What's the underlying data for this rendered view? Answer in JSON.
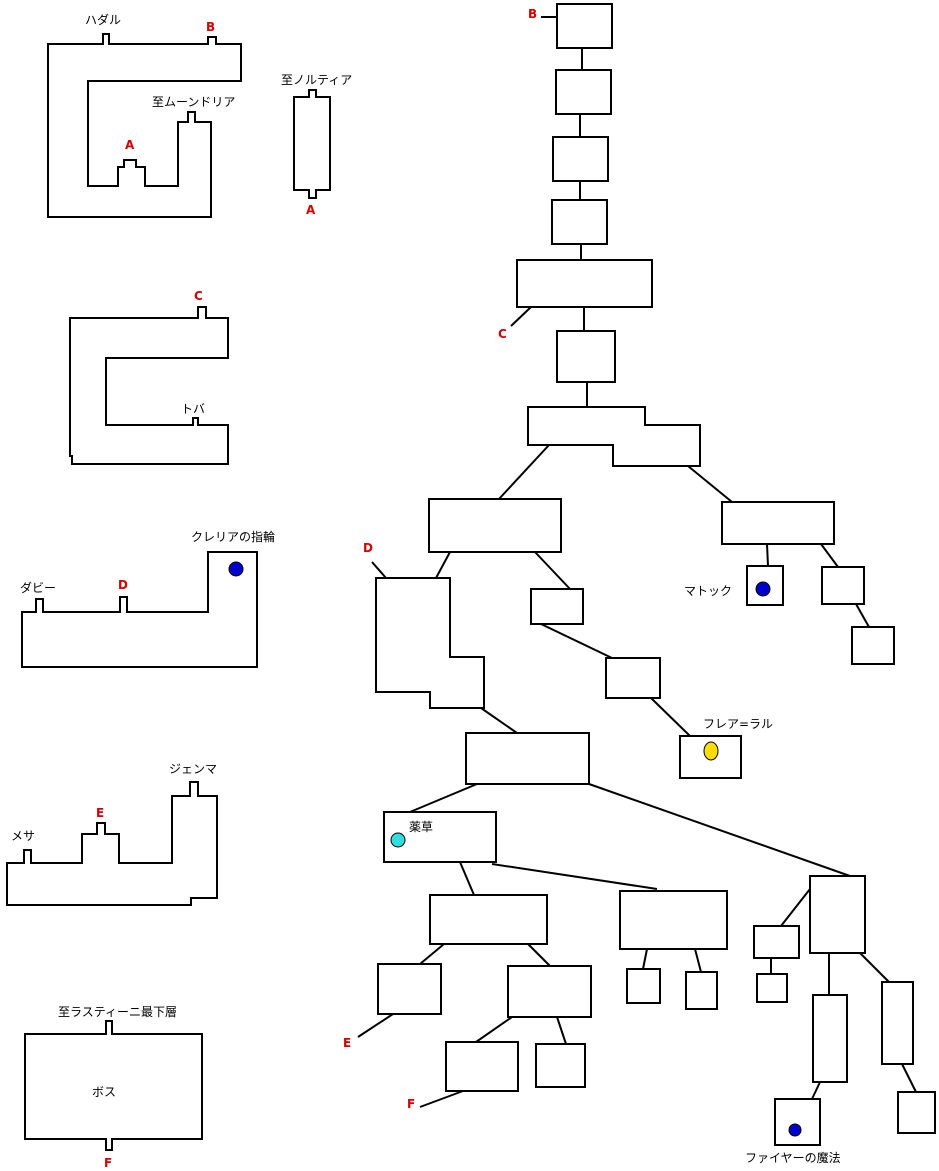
{
  "labels": {
    "hadal": "ハダル",
    "to_moondoria": "至ムーンドリア",
    "to_nortia": "至ノルティア",
    "toba": "トバ",
    "clelia_ring": "クレリアの指輪",
    "dabby": "ダビー",
    "jenma": "ジェンマ",
    "mesa": "メサ",
    "to_lasti_bottom": "至ラスティーニ最下層",
    "boss": "ボス",
    "mattock": "マトック",
    "flare_lal": "フレア=ラル",
    "herb": "薬草",
    "fire_magic": "ファイヤーの魔法"
  },
  "letters": {
    "a": "A",
    "b": "B",
    "c": "C",
    "d": "D",
    "e": "E",
    "f": "F"
  },
  "markers": {
    "item_blue": "#0000cc",
    "herb_cyan": "#33dddd",
    "flare_yellow": "#ffdd00"
  },
  "colors": {
    "letter": "#d40000",
    "line": "#000000",
    "room_fill": "#ffffff"
  }
}
